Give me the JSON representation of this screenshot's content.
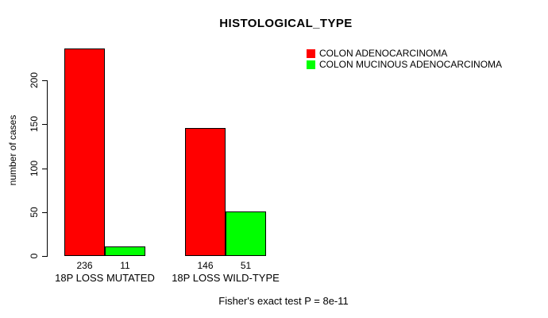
{
  "title": "HISTOLOGICAL_TYPE",
  "caption": "Fisher's exact test P = 8e-11",
  "ylabel": "number of cases",
  "colors": {
    "series1": "#ff0000",
    "series2": "#00ff00",
    "axis": "#000000",
    "background": "#ffffff"
  },
  "legend": [
    {
      "label": "COLON ADENOCARCINOMA",
      "color": "#ff0000"
    },
    {
      "label": "COLON MUCINOUS ADENOCARCINOMA",
      "color": "#00ff00"
    }
  ],
  "chart_data": {
    "type": "bar",
    "title": "HISTOLOGICAL_TYPE",
    "xlabel": "",
    "ylabel": "number of cases",
    "categories": [
      "18P LOSS MUTATED",
      "18P LOSS WILD-TYPE"
    ],
    "series": [
      {
        "name": "COLON ADENOCARCINOMA",
        "color": "#ff0000",
        "values": [
          236,
          146
        ]
      },
      {
        "name": "COLON MUCINOUS ADENOCARCINOMA",
        "color": "#00ff00",
        "values": [
          11,
          51
        ]
      }
    ],
    "bar_value_labels": [
      [
        "236",
        "11"
      ],
      [
        "146",
        "51"
      ]
    ],
    "yticks": [
      0,
      50,
      100,
      150,
      200
    ],
    "ylim": [
      0,
      200
    ],
    "grid": false,
    "legend_position": "top-right",
    "annotation": "Fisher's exact test P = 8e-11"
  }
}
